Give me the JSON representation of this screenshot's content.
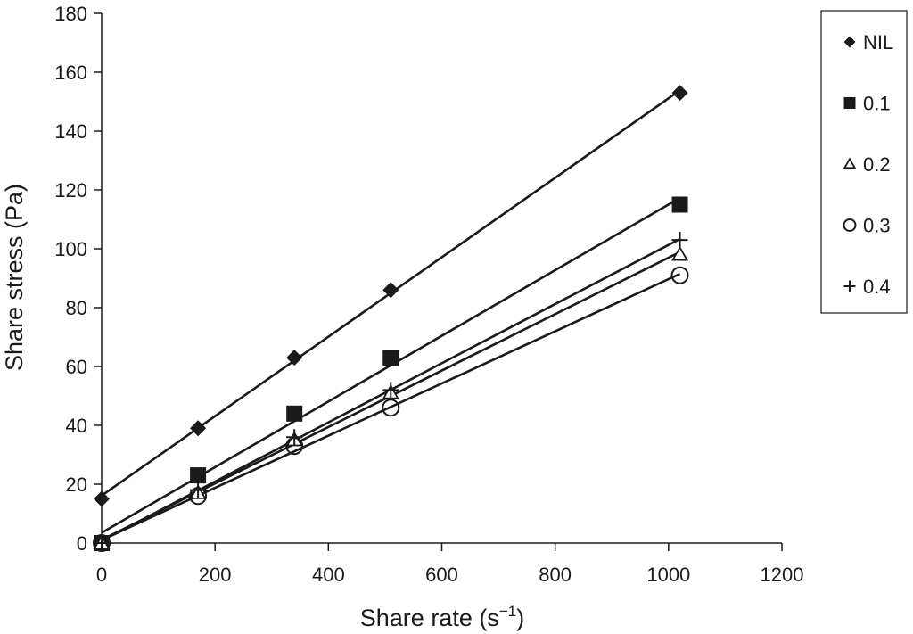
{
  "chart_data": {
    "type": "scatter",
    "title": "",
    "xlabel": "Share rate (s",
    "xlabel_sup": "−1",
    "xlabel_close": ")",
    "ylabel": "Share stress (Pa)",
    "xlim": [
      0,
      1200
    ],
    "ylim": [
      0,
      180
    ],
    "xticks": [
      0,
      200,
      400,
      600,
      800,
      1000,
      1200
    ],
    "yticks": [
      0,
      20,
      40,
      60,
      80,
      100,
      120,
      140,
      160,
      180
    ],
    "grid": false,
    "legend_position": "right",
    "trendlines": "linear",
    "series": [
      {
        "name": "NIL",
        "marker": "diamond",
        "x": [
          0,
          170,
          340,
          510,
          1020
        ],
        "y": [
          15,
          39,
          63,
          86,
          153
        ]
      },
      {
        "name": "0.1",
        "marker": "square",
        "x": [
          0,
          170,
          340,
          510,
          1020
        ],
        "y": [
          0,
          23,
          44,
          63,
          115
        ]
      },
      {
        "name": "0.2",
        "marker": "triangle",
        "x": [
          0,
          170,
          340,
          510,
          1020
        ],
        "y": [
          0,
          17,
          35,
          51,
          98
        ]
      },
      {
        "name": "0.3",
        "marker": "circle",
        "x": [
          0,
          170,
          340,
          510,
          1020
        ],
        "y": [
          0,
          16,
          33,
          46,
          91
        ]
      },
      {
        "name": "0.4",
        "marker": "plus",
        "x": [
          0,
          170,
          340,
          510,
          1020
        ],
        "y": [
          0,
          18,
          36,
          52,
          103
        ]
      }
    ]
  },
  "colors": {
    "ink": "#1a1a1a",
    "background": "#ffffff"
  }
}
